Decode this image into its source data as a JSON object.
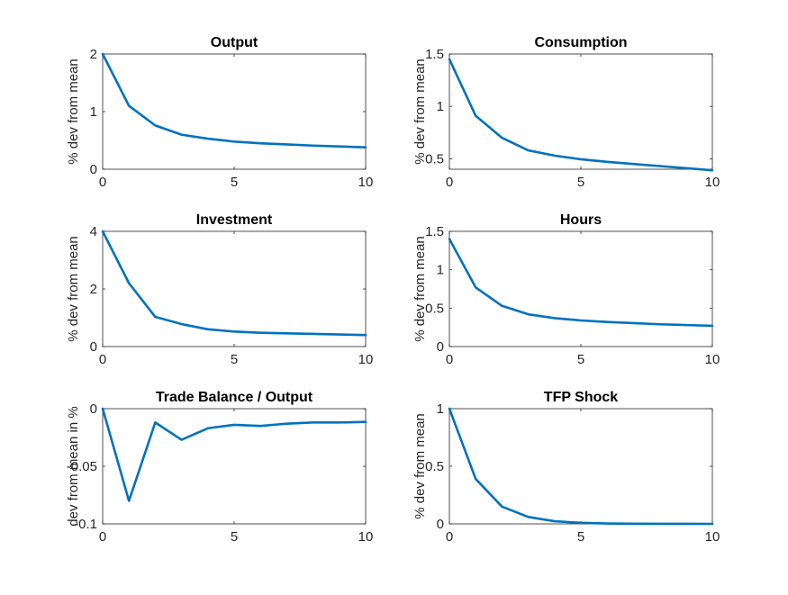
{
  "figure": {
    "line_color": "#0072bd",
    "axes_color": "#262626",
    "background": "#ffffff"
  },
  "chart_data": [
    {
      "type": "line",
      "title": "Output",
      "xlabel": "",
      "ylabel": "% dev from mean",
      "xlim": [
        0,
        10
      ],
      "ylim": [
        0,
        2
      ],
      "xticks": [
        0,
        5,
        10
      ],
      "yticks": [
        0,
        1,
        2
      ],
      "x": [
        0,
        1,
        2,
        3,
        4,
        5,
        6,
        7,
        8,
        9,
        10
      ],
      "series": [
        {
          "values": [
            2.0,
            1.1,
            0.76,
            0.6,
            0.53,
            0.48,
            0.45,
            0.43,
            0.41,
            0.395,
            0.38
          ]
        }
      ]
    },
    {
      "type": "line",
      "title": "Consumption",
      "xlabel": "",
      "ylabel": "% dev from mean",
      "xlim": [
        0,
        10
      ],
      "ylim": [
        0.4,
        1.5
      ],
      "xticks": [
        0,
        5,
        10
      ],
      "yticks": [
        0.5,
        1,
        1.5
      ],
      "x": [
        0,
        1,
        2,
        3,
        4,
        5,
        6,
        7,
        8,
        9,
        10
      ],
      "series": [
        {
          "values": [
            1.45,
            0.91,
            0.7,
            0.58,
            0.53,
            0.495,
            0.47,
            0.45,
            0.43,
            0.41,
            0.39
          ]
        }
      ]
    },
    {
      "type": "line",
      "title": "Investment",
      "xlabel": "",
      "ylabel": "% dev from mean",
      "xlim": [
        0,
        10
      ],
      "ylim": [
        0,
        4
      ],
      "xticks": [
        0,
        5,
        10
      ],
      "yticks": [
        0,
        2,
        4
      ],
      "x": [
        0,
        1,
        2,
        3,
        4,
        5,
        6,
        7,
        8,
        9,
        10
      ],
      "series": [
        {
          "values": [
            4.0,
            2.2,
            1.03,
            0.78,
            0.6,
            0.52,
            0.48,
            0.46,
            0.44,
            0.42,
            0.4
          ]
        }
      ]
    },
    {
      "type": "line",
      "title": "Hours",
      "xlabel": "",
      "ylabel": "% dev from mean",
      "xlim": [
        0,
        10
      ],
      "ylim": [
        0,
        1.5
      ],
      "xticks": [
        0,
        5,
        10
      ],
      "yticks": [
        0,
        0.5,
        1,
        1.5
      ],
      "x": [
        0,
        1,
        2,
        3,
        4,
        5,
        6,
        7,
        8,
        9,
        10
      ],
      "series": [
        {
          "values": [
            1.4,
            0.77,
            0.53,
            0.42,
            0.37,
            0.34,
            0.32,
            0.305,
            0.29,
            0.28,
            0.27
          ]
        }
      ]
    },
    {
      "type": "line",
      "title": "Trade Balance / Output",
      "xlabel": "",
      "ylabel": "dev from mean in %",
      "xlim": [
        0,
        10
      ],
      "ylim": [
        -0.1,
        0
      ],
      "xticks": [
        0,
        5,
        10
      ],
      "yticks": [
        -0.1,
        -0.05,
        0
      ],
      "x": [
        0,
        1,
        2,
        3,
        4,
        5,
        6,
        7,
        8,
        9,
        10
      ],
      "series": [
        {
          "values": [
            0,
            -0.08,
            -0.012,
            -0.027,
            -0.017,
            -0.014,
            -0.015,
            -0.013,
            -0.012,
            -0.012,
            -0.0115
          ]
        }
      ]
    },
    {
      "type": "line",
      "title": "TFP Shock",
      "xlabel": "",
      "ylabel": "% dev from mean",
      "xlim": [
        0,
        10
      ],
      "ylim": [
        0,
        1
      ],
      "xticks": [
        0,
        5,
        10
      ],
      "yticks": [
        0,
        0.5,
        1
      ],
      "x": [
        0,
        1,
        2,
        3,
        4,
        5,
        6,
        7,
        8,
        9,
        10
      ],
      "series": [
        {
          "values": [
            1.0,
            0.39,
            0.15,
            0.06,
            0.023,
            0.009,
            0.0035,
            0.0014,
            0.0005,
            0.0002,
            0.0001
          ]
        }
      ]
    }
  ]
}
